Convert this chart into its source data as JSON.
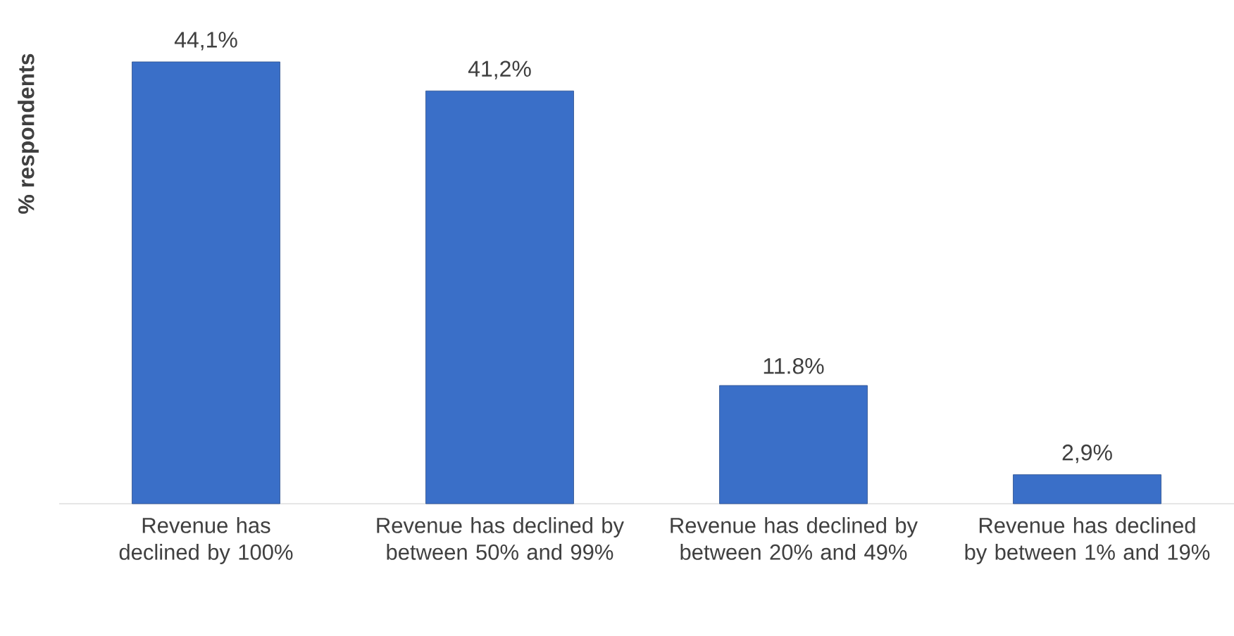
{
  "chart_data": {
    "type": "bar",
    "ylabel": "% respondents",
    "categories": [
      "Revenue has declined by 100%",
      "Revenue has declined by between 50% and 99%",
      "Revenue has declined by between 20% and 49%",
      "Revenue has declined by between 1% and 19%"
    ],
    "values": [
      44.1,
      41.2,
      11.8,
      2.9
    ],
    "value_labels": [
      "44,1%",
      "41,2%",
      "11.8%",
      "2,9%"
    ],
    "color": "#3a6fc8"
  }
}
